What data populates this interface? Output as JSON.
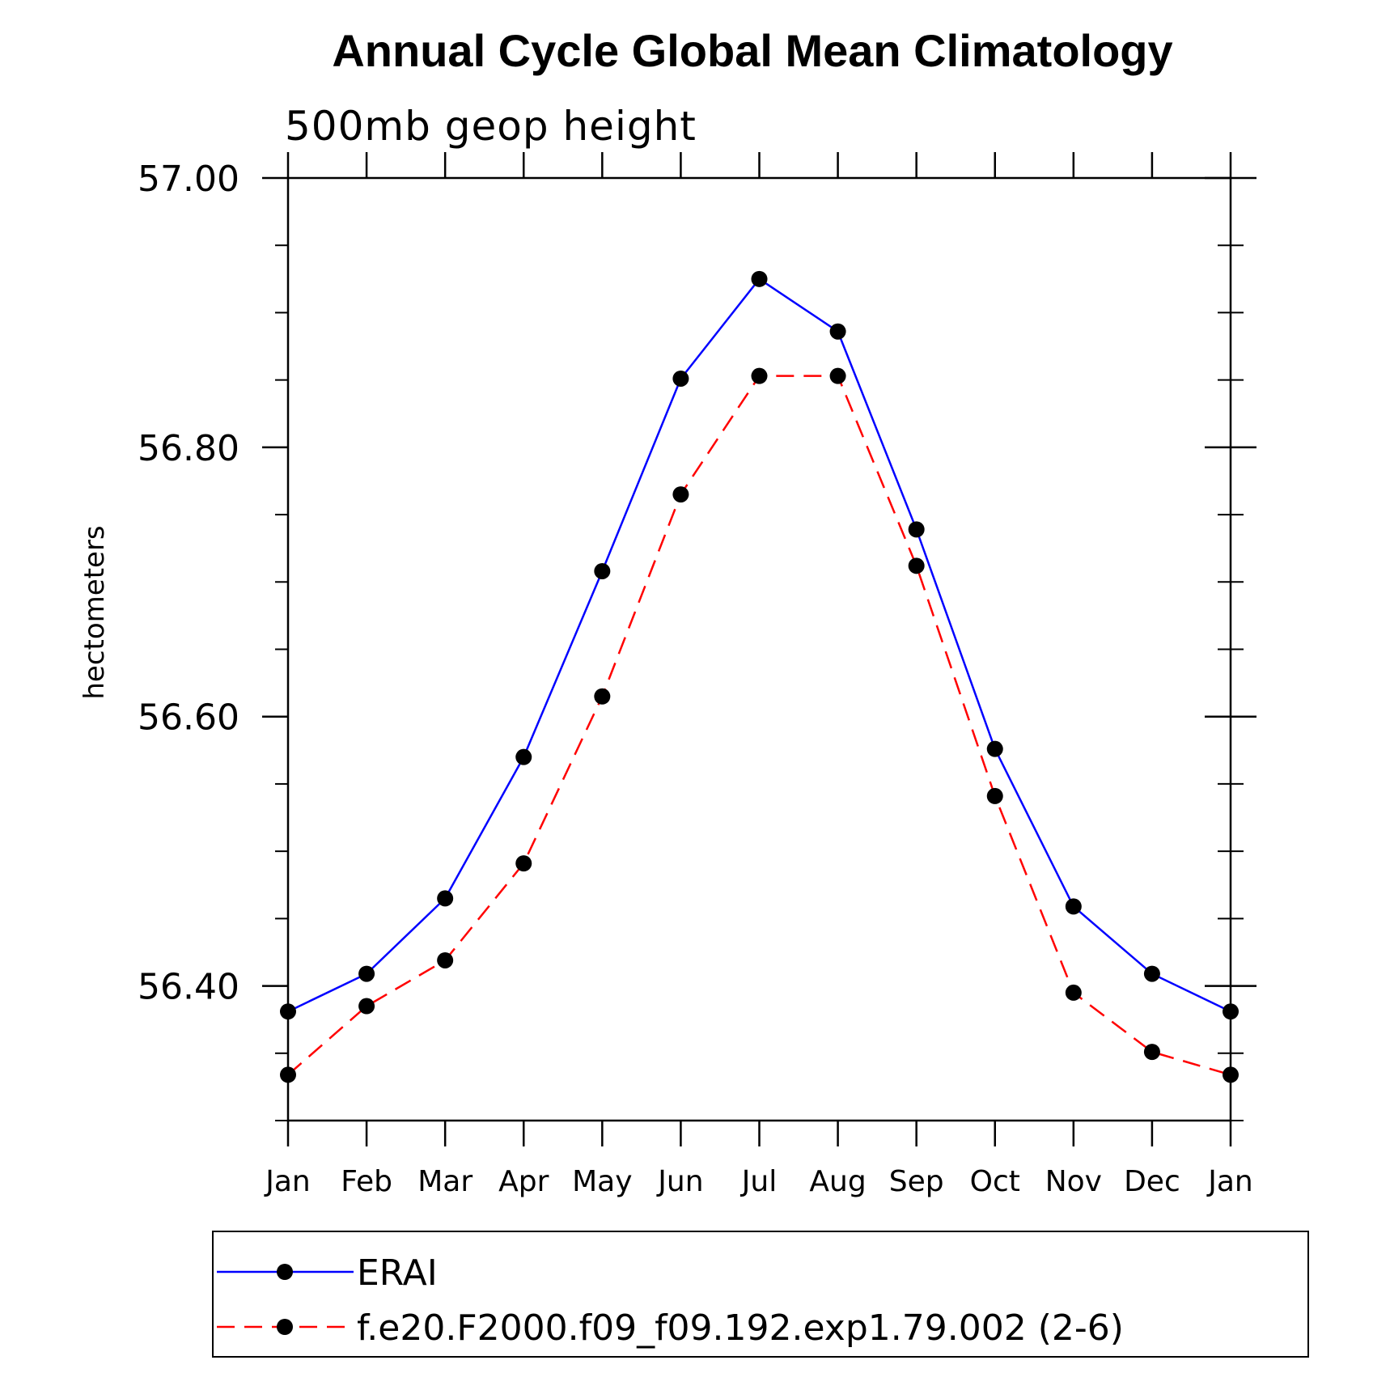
{
  "chart_data": {
    "type": "line",
    "title": "Annual Cycle Global Mean Climatology",
    "subtitle": "500mb geop height",
    "xlabel": "",
    "ylabel": "hectometers",
    "categories": [
      "Jan",
      "Feb",
      "Mar",
      "Apr",
      "May",
      "Jun",
      "Jul",
      "Aug",
      "Sep",
      "Oct",
      "Nov",
      "Dec",
      "Jan"
    ],
    "ylim": [
      56.3,
      57.0
    ],
    "y_major_ticks": [
      56.4,
      56.6,
      56.8,
      57.0
    ],
    "y_tick_labels": [
      "56.40",
      "56.60",
      "56.80",
      "57.00"
    ],
    "y_minor_step": 0.05,
    "grid": false,
    "legend_position": "bottom",
    "series": [
      {
        "name": "ERAI",
        "color": "#0000ff",
        "line_style": "solid",
        "marker": "filled-circle",
        "values": [
          56.381,
          56.409,
          56.465,
          56.57,
          56.708,
          56.851,
          56.925,
          56.886,
          56.739,
          56.576,
          56.459,
          56.409,
          56.381
        ]
      },
      {
        "name": "f.e20.F2000.f09_f09.192.exp1.79.002 (2-6)",
        "color": "#ff0000",
        "line_style": "dashed",
        "marker": "filled-circle",
        "values": [
          56.334,
          56.385,
          56.419,
          56.491,
          56.615,
          56.765,
          56.853,
          56.853,
          56.712,
          56.541,
          56.395,
          56.351,
          56.334
        ]
      }
    ]
  }
}
